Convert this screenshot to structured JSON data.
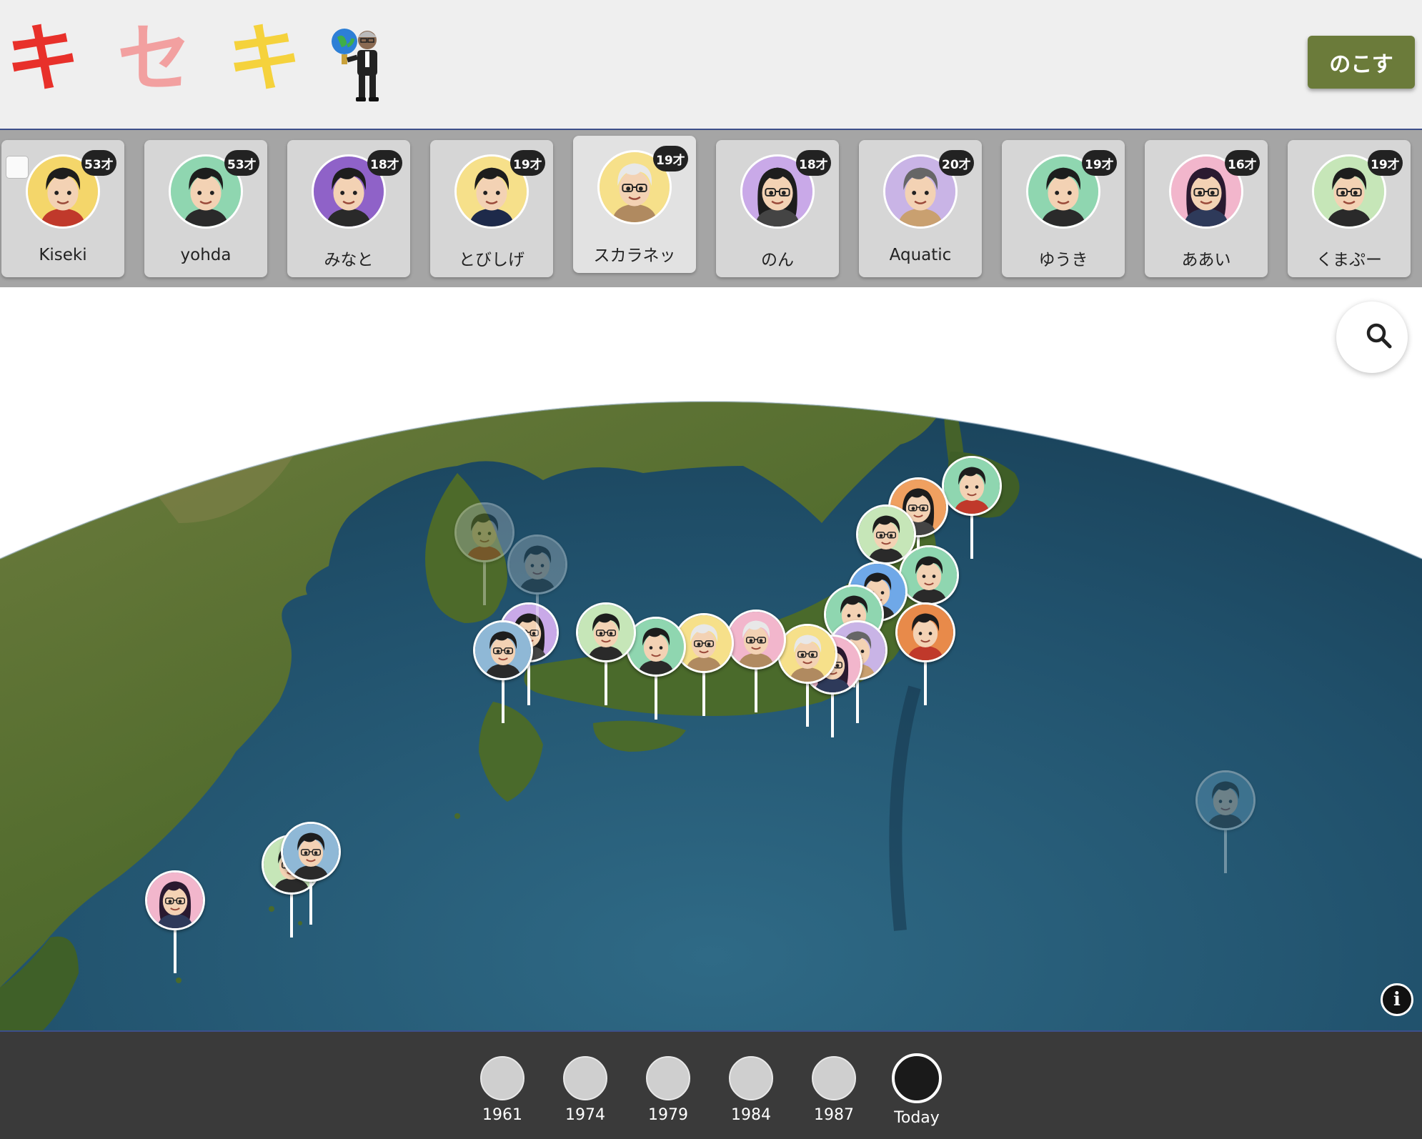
{
  "header": {
    "logo": [
      {
        "char": "キ",
        "color": "#e8302a"
      },
      {
        "char": "セ",
        "color": "#f2a0a0"
      },
      {
        "char": "キ",
        "color": "#f5d23c"
      }
    ],
    "mascot_icon": "globe-mascot-icon",
    "leave_button": "のこす"
  },
  "profiles": [
    {
      "name": "Kiseki",
      "age": "53才",
      "bg": "#f4d66a"
    },
    {
      "name": "yohda",
      "age": "53才",
      "bg": "#8fd6b0"
    },
    {
      "name": "みなと",
      "age": "18才",
      "bg": "#8f62c8"
    },
    {
      "name": "とびしげ",
      "age": "19才",
      "bg": "#f6e08a"
    },
    {
      "name": "スカラネッ",
      "age": "19才",
      "bg": "#f6e08a"
    },
    {
      "name": "のん",
      "age": "18才",
      "bg": "#c9a9e8"
    },
    {
      "name": "Aquatic",
      "age": "20才",
      "bg": "#c9b4e6"
    },
    {
      "name": "ゆうき",
      "age": "19才",
      "bg": "#8fd6b0"
    },
    {
      "name": "ああい",
      "age": "16才",
      "bg": "#f2b6cc"
    },
    {
      "name": "くまぷー",
      "age": "19才",
      "bg": "#c6e6b8"
    }
  ],
  "map": {
    "search_icon": "search-icon",
    "info_icon": "info-icon",
    "info_label": "i"
  },
  "timeline": {
    "items": [
      "1961",
      "1974",
      "1979",
      "1984",
      "1987",
      "Today"
    ],
    "active": "Today"
  }
}
